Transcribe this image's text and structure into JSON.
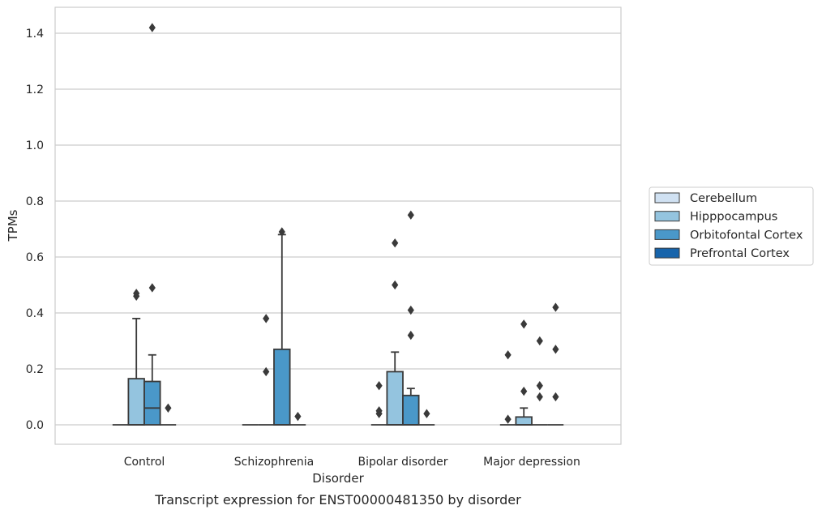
{
  "chart_data": {
    "type": "box",
    "caption": "Transcript expression for ENST00000481350 by disorder",
    "xlabel": "Disorder",
    "ylabel": "TPMs",
    "ylim": [
      -0.07,
      1.49
    ],
    "yticks": [
      0.0,
      0.2,
      0.4,
      0.6,
      0.8,
      1.0,
      1.2,
      1.4
    ],
    "ytick_labels": [
      "0.0",
      "0.2",
      "0.4",
      "0.6",
      "0.8",
      "1.0",
      "1.2",
      "1.4"
    ],
    "grid": true,
    "legend_position": "right",
    "categories": [
      "Control",
      "Schizophrenia",
      "Bipolar disorder",
      "Major depression"
    ],
    "series": [
      {
        "name": "Cerebellum",
        "color": "#d0e1f2",
        "boxes": [
          {
            "q1": 0,
            "median": 0,
            "q3": 0,
            "whisker_low": 0,
            "whisker_high": 0,
            "outliers": []
          },
          {
            "q1": 0,
            "median": 0,
            "q3": 0,
            "whisker_low": 0,
            "whisker_high": 0,
            "outliers": []
          },
          {
            "q1": 0,
            "median": 0,
            "q3": 0,
            "whisker_low": 0,
            "whisker_high": 0,
            "outliers": [
              0.04,
              0.05,
              0.14
            ]
          },
          {
            "q1": 0,
            "median": 0,
            "q3": 0,
            "whisker_low": 0,
            "whisker_high": 0,
            "outliers": [
              0.02,
              0.25
            ]
          }
        ]
      },
      {
        "name": "Hipppocampus",
        "color": "#94c4df",
        "boxes": [
          {
            "q1": 0,
            "median": 0,
            "q3": 0.165,
            "whisker_low": 0,
            "whisker_high": 0.38,
            "outliers": [
              0.46,
              0.47
            ]
          },
          {
            "q1": 0,
            "median": 0,
            "q3": 0,
            "whisker_low": 0,
            "whisker_high": 0,
            "outliers": [
              0.19,
              0.38
            ]
          },
          {
            "q1": 0,
            "median": 0,
            "q3": 0.19,
            "whisker_low": 0,
            "whisker_high": 0.26,
            "outliers": [
              0.5,
              0.65
            ]
          },
          {
            "q1": 0,
            "median": 0,
            "q3": 0.028,
            "whisker_low": 0,
            "whisker_high": 0.06,
            "outliers": [
              0.12,
              0.36
            ]
          }
        ]
      },
      {
        "name": "Orbitofontal Cortex",
        "color": "#4a98c9",
        "boxes": [
          {
            "q1": 0,
            "median": 0.06,
            "q3": 0.155,
            "whisker_low": 0,
            "whisker_high": 0.25,
            "outliers": [
              0.49,
              1.42
            ]
          },
          {
            "q1": 0,
            "median": 0,
            "q3": 0.27,
            "whisker_low": 0,
            "whisker_high": 0.68,
            "outliers": [
              0.69
            ]
          },
          {
            "q1": 0,
            "median": 0,
            "q3": 0.105,
            "whisker_low": 0,
            "whisker_high": 0.13,
            "outliers": [
              0.32,
              0.41,
              0.75
            ]
          },
          {
            "q1": 0,
            "median": 0,
            "q3": 0,
            "whisker_low": 0,
            "whisker_high": 0,
            "outliers": [
              0.1,
              0.14,
              0.3
            ]
          }
        ]
      },
      {
        "name": "Prefrontal Cortex",
        "color": "#1764ab",
        "boxes": [
          {
            "q1": 0,
            "median": 0,
            "q3": 0,
            "whisker_low": 0,
            "whisker_high": 0,
            "outliers": [
              0.06
            ]
          },
          {
            "q1": 0,
            "median": 0,
            "q3": 0,
            "whisker_low": 0,
            "whisker_high": 0,
            "outliers": [
              0.03
            ]
          },
          {
            "q1": 0,
            "median": 0,
            "q3": 0,
            "whisker_low": 0,
            "whisker_high": 0,
            "outliers": [
              0.04
            ]
          },
          {
            "q1": 0,
            "median": 0,
            "q3": 0,
            "whisker_low": 0,
            "whisker_high": 0,
            "outliers": [
              0.1,
              0.27,
              0.42
            ]
          }
        ]
      }
    ]
  }
}
